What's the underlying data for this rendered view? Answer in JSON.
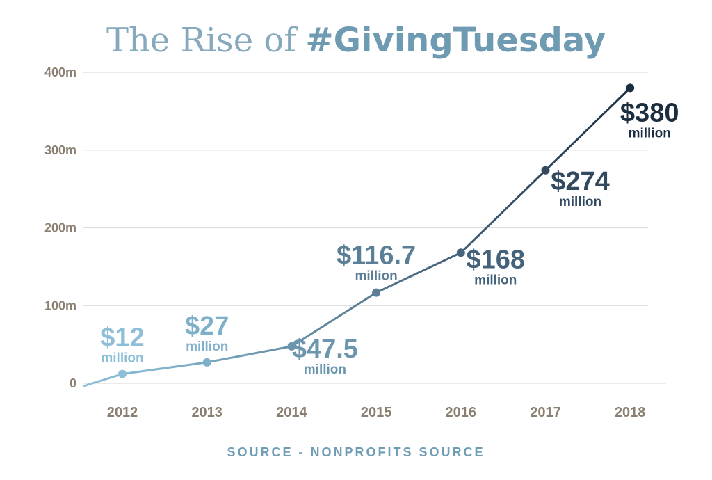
{
  "title": {
    "plain": "The Rise of",
    "hashtag": "#GivingTuesday"
  },
  "source": "SOURCE - NONPROFITS SOURCE",
  "colors": {
    "grid": "#dddddd",
    "tick": "#8a7f70",
    "ramp": [
      "#8dbfd8",
      "#7fb0c9",
      "#6b96ad",
      "#5b7f96",
      "#45627b",
      "#32495f",
      "#1b2e40"
    ]
  },
  "chart_data": {
    "type": "line",
    "x": [
      "2012",
      "2013",
      "2014",
      "2015",
      "2016",
      "2017",
      "2018"
    ],
    "series": [
      {
        "values": [
          12,
          27,
          47.5,
          116.7,
          168,
          274,
          380
        ]
      }
    ],
    "ylim": [
      0,
      400
    ],
    "yticks": [
      0,
      100,
      200,
      300,
      400
    ],
    "ytick_labels": [
      "0",
      "100m",
      "200m",
      "300m",
      "400m"
    ],
    "grid": true,
    "data_labels": [
      {
        "value": "$12",
        "unit": "million"
      },
      {
        "value": "$27",
        "unit": "million"
      },
      {
        "value": "$47.5",
        "unit": "million"
      },
      {
        "value": "$116.7",
        "unit": "million"
      },
      {
        "value": "$168",
        "unit": "million"
      },
      {
        "value": "$274",
        "unit": "million"
      },
      {
        "value": "$380",
        "unit": "million"
      }
    ]
  }
}
